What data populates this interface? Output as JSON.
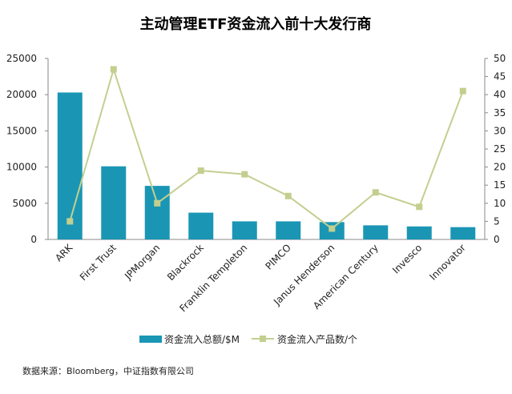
{
  "chart_data": {
    "type": "bar",
    "title": "主动管理ETF资金流入前十大发行商",
    "categories": [
      "ARK",
      "First Trust",
      "JPMorgan",
      "Blackrock",
      "Franklin Templeton",
      "PIMCO",
      "Janus Henderson",
      "American Century",
      "Invesco",
      "Innovator"
    ],
    "series": [
      {
        "name": "资金流入总额/$M",
        "type": "bar",
        "axis": "left",
        "color": "#1a96b4",
        "values": [
          20300,
          10100,
          7400,
          3700,
          2500,
          2500,
          2400,
          1950,
          1800,
          1700
        ]
      },
      {
        "name": "资金流入产品数/个",
        "type": "line",
        "axis": "right",
        "color": "#c3cf8f",
        "values": [
          5,
          47,
          10,
          19,
          18,
          12,
          3,
          13,
          9,
          41
        ]
      }
    ],
    "ylim_left": [
      0,
      25000
    ],
    "yticks_left": [
      "0",
      "5000",
      "10000",
      "15000",
      "20000",
      "25000"
    ],
    "ylim_right": [
      0,
      50
    ],
    "yticks_right": [
      "0",
      "5",
      "10",
      "15",
      "20",
      "25",
      "30",
      "35",
      "40",
      "45",
      "50"
    ],
    "grid": false,
    "legend_position": "bottom",
    "source": "数据来源：Bloomberg，中证指数有限公司"
  }
}
